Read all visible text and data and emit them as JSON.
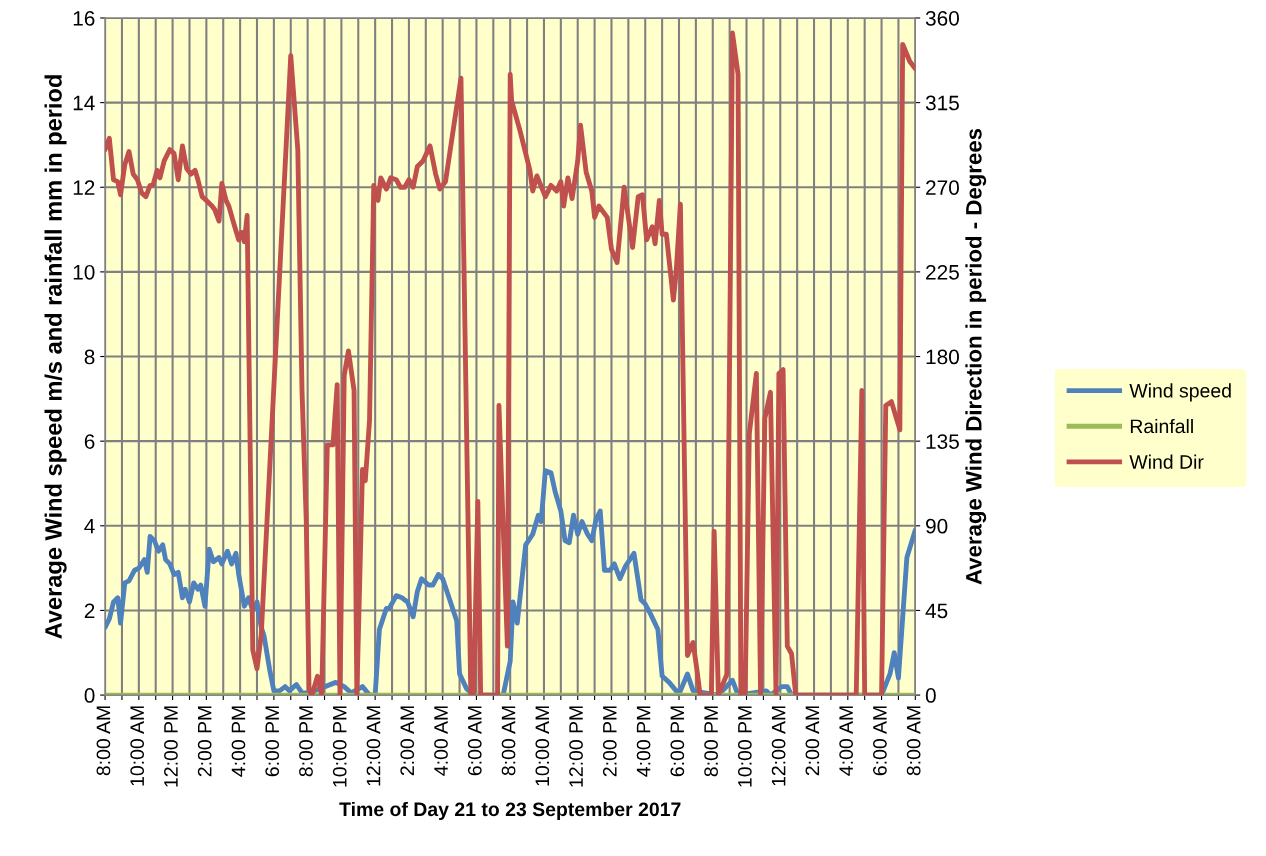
{
  "chart_data": {
    "type": "line",
    "xlabel": "Time of Day 21 to 23 September 2017",
    "ylabel": "Average Wind speed m/s and rainfall mm in period",
    "y2label": "Average Wind Direction in period - Degrees",
    "xlim": [
      "2017-09-21T08:00",
      "2017-09-23T08:00"
    ],
    "xticks": [
      {
        "value": "2017-09-21T08:00",
        "label": "8:00 AM"
      },
      {
        "value": "2017-09-21T09:00",
        "label": null
      },
      {
        "value": "2017-09-21T10:00",
        "label": "10:00 AM"
      },
      {
        "value": "2017-09-21T11:00",
        "label": null
      },
      {
        "value": "2017-09-21T12:00",
        "label": "12:00 PM"
      },
      {
        "value": "2017-09-21T13:00",
        "label": null
      },
      {
        "value": "2017-09-21T14:00",
        "label": "2:00 PM"
      },
      {
        "value": "2017-09-21T15:00",
        "label": null
      },
      {
        "value": "2017-09-21T16:00",
        "label": "4:00 PM"
      },
      {
        "value": "2017-09-21T17:00",
        "label": null
      },
      {
        "value": "2017-09-21T18:00",
        "label": "6:00 PM"
      },
      {
        "value": "2017-09-21T19:00",
        "label": null
      },
      {
        "value": "2017-09-21T20:00",
        "label": "8:00 PM"
      },
      {
        "value": "2017-09-21T21:00",
        "label": null
      },
      {
        "value": "2017-09-21T22:00",
        "label": "10:00 PM"
      },
      {
        "value": "2017-09-21T23:00",
        "label": null
      },
      {
        "value": "2017-09-22T00:00",
        "label": "12:00 AM"
      },
      {
        "value": "2017-09-22T01:00",
        "label": null
      },
      {
        "value": "2017-09-22T02:00",
        "label": "2:00 AM"
      },
      {
        "value": "2017-09-22T03:00",
        "label": null
      },
      {
        "value": "2017-09-22T04:00",
        "label": "4:00 AM"
      },
      {
        "value": "2017-09-22T05:00",
        "label": null
      },
      {
        "value": "2017-09-22T06:00",
        "label": "6:00 AM"
      },
      {
        "value": "2017-09-22T07:00",
        "label": null
      },
      {
        "value": "2017-09-22T08:00",
        "label": "8:00 AM"
      },
      {
        "value": "2017-09-22T09:00",
        "label": null
      },
      {
        "value": "2017-09-22T10:00",
        "label": "10:00 AM"
      },
      {
        "value": "2017-09-22T11:00",
        "label": null
      },
      {
        "value": "2017-09-22T12:00",
        "label": "12:00 PM"
      },
      {
        "value": "2017-09-22T13:00",
        "label": null
      },
      {
        "value": "2017-09-22T14:00",
        "label": "2:00 PM"
      },
      {
        "value": "2017-09-22T15:00",
        "label": null
      },
      {
        "value": "2017-09-22T16:00",
        "label": "4:00 PM"
      },
      {
        "value": "2017-09-22T17:00",
        "label": null
      },
      {
        "value": "2017-09-22T18:00",
        "label": "6:00 PM"
      },
      {
        "value": "2017-09-22T19:00",
        "label": null
      },
      {
        "value": "2017-09-22T20:00",
        "label": "8:00 PM"
      },
      {
        "value": "2017-09-22T21:00",
        "label": null
      },
      {
        "value": "2017-09-22T22:00",
        "label": "10:00 PM"
      },
      {
        "value": "2017-09-22T23:00",
        "label": null
      },
      {
        "value": "2017-09-23T00:00",
        "label": "12:00 AM"
      },
      {
        "value": "2017-09-23T01:00",
        "label": null
      },
      {
        "value": "2017-09-23T02:00",
        "label": "2:00 AM"
      },
      {
        "value": "2017-09-23T03:00",
        "label": null
      },
      {
        "value": "2017-09-23T04:00",
        "label": "4:00 AM"
      },
      {
        "value": "2017-09-23T05:00",
        "label": null
      },
      {
        "value": "2017-09-23T06:00",
        "label": "6:00 AM"
      },
      {
        "value": "2017-09-23T07:00",
        "label": null
      },
      {
        "value": "2017-09-23T08:00",
        "label": "8:00 AM"
      }
    ],
    "ylim": [
      0,
      16
    ],
    "yticks": [
      0,
      2,
      4,
      6,
      8,
      10,
      12,
      14,
      16
    ],
    "y2lim": [
      0,
      360
    ],
    "y2ticks": [
      0,
      45,
      90,
      135,
      180,
      225,
      270,
      315,
      360
    ],
    "grid": true,
    "legend": "right",
    "marker": "none",
    "line_style": "solid",
    "series": [
      {
        "name": "Wind speed",
        "color": "#4f81bd",
        "x": [
          "2017-09-21T08:00",
          "2017-09-21T08:15",
          "2017-09-21T08:30",
          "2017-09-21T08:45",
          "2017-09-21T08:55",
          "2017-09-21T09:10",
          "2017-09-21T09:25",
          "2017-09-21T09:45",
          "2017-09-21T10:00",
          "2017-09-21T10:20",
          "2017-09-21T10:30",
          "2017-09-21T10:40",
          "2017-09-21T10:55",
          "2017-09-21T11:10",
          "2017-09-21T11:25",
          "2017-09-21T11:35",
          "2017-09-21T11:50",
          "2017-09-21T12:05",
          "2017-09-21T12:20",
          "2017-09-21T12:35",
          "2017-09-21T12:45",
          "2017-09-21T13:00",
          "2017-09-21T13:15",
          "2017-09-21T13:30",
          "2017-09-21T13:40",
          "2017-09-21T13:55",
          "2017-09-21T14:10",
          "2017-09-21T14:25",
          "2017-09-21T14:45",
          "2017-09-21T14:55",
          "2017-09-21T15:15",
          "2017-09-21T15:30",
          "2017-09-21T15:45",
          "2017-09-21T15:55",
          "2017-09-21T16:15",
          "2017-09-21T16:30",
          "2017-09-21T16:45",
          "2017-09-21T17:00",
          "2017-09-21T17:15",
          "2017-09-21T17:25",
          "2017-09-21T17:45",
          "2017-09-21T18:00",
          "2017-09-21T18:20",
          "2017-09-21T18:40",
          "2017-09-21T18:55",
          "2017-09-21T19:20",
          "2017-09-21T19:40",
          "2017-09-21T20:05",
          "2017-09-21T21:40",
          "2017-09-21T22:10",
          "2017-09-21T22:35",
          "2017-09-21T23:15",
          "2017-09-21T23:40",
          "2017-09-22T00:00",
          "2017-09-22T00:15",
          "2017-09-22T00:40",
          "2017-09-22T00:50",
          "2017-09-22T01:15",
          "2017-09-22T01:35",
          "2017-09-22T01:55",
          "2017-09-22T02:15",
          "2017-09-22T02:30",
          "2017-09-22T02:45",
          "2017-09-22T03:10",
          "2017-09-22T03:25",
          "2017-09-22T03:45",
          "2017-09-22T04:00",
          "2017-09-22T04:25",
          "2017-09-22T04:50",
          "2017-09-22T05:00",
          "2017-09-22T05:25",
          "2017-09-22T05:50",
          "2017-09-22T07:35",
          "2017-09-22T08:00",
          "2017-09-22T08:10",
          "2017-09-22T08:25",
          "2017-09-22T08:55",
          "2017-09-22T09:20",
          "2017-09-22T09:40",
          "2017-09-22T09:50",
          "2017-09-22T10:05",
          "2017-09-22T10:25",
          "2017-09-22T10:40",
          "2017-09-22T11:00",
          "2017-09-22T11:15",
          "2017-09-22T11:30",
          "2017-09-22T11:45",
          "2017-09-22T12:00",
          "2017-09-22T12:15",
          "2017-09-22T12:35",
          "2017-09-22T12:50",
          "2017-09-22T13:05",
          "2017-09-22T13:20",
          "2017-09-22T13:35",
          "2017-09-22T13:55",
          "2017-09-22T14:10",
          "2017-09-22T14:30",
          "2017-09-22T14:50",
          "2017-09-22T15:20",
          "2017-09-22T15:45",
          "2017-09-22T16:00",
          "2017-09-22T16:20",
          "2017-09-22T16:45",
          "2017-09-22T17:00",
          "2017-09-22T17:25",
          "2017-09-22T17:50",
          "2017-09-22T18:05",
          "2017-09-22T18:30",
          "2017-09-22T18:50",
          "2017-09-22T20:20",
          "2017-09-22T21:10",
          "2017-09-22T21:30",
          "2017-09-22T23:10",
          "2017-09-22T23:25",
          "2017-09-23T00:05",
          "2017-09-23T00:25",
          "2017-09-23T00:40",
          "2017-09-23T06:00",
          "2017-09-23T06:30",
          "2017-09-23T06:45",
          "2017-09-23T07:00",
          "2017-09-23T07:30",
          "2017-09-23T08:00"
        ],
        "values": [
          1.6,
          1.8,
          2.2,
          2.3,
          1.7,
          2.65,
          2.7,
          2.95,
          3.0,
          3.2,
          2.9,
          3.75,
          3.65,
          3.4,
          3.55,
          3.2,
          3.1,
          2.85,
          2.9,
          2.3,
          2.5,
          2.2,
          2.65,
          2.5,
          2.6,
          2.1,
          3.45,
          3.15,
          3.25,
          3.1,
          3.4,
          3.1,
          3.35,
          2.85,
          2.1,
          2.3,
          2.0,
          2.2,
          1.6,
          1.4,
          0.6,
          0.1,
          0.1,
          0.2,
          0.1,
          0.25,
          0.05,
          0.05,
          0.3,
          0.2,
          0.05,
          0.2,
          0.0,
          0.0,
          1.55,
          2.05,
          2.05,
          2.35,
          2.3,
          2.2,
          1.85,
          2.45,
          2.75,
          2.6,
          2.6,
          2.85,
          2.75,
          2.25,
          1.75,
          0.5,
          0.15,
          0.0,
          0.0,
          0.8,
          2.2,
          1.7,
          3.55,
          3.8,
          4.25,
          4.1,
          5.3,
          5.25,
          4.8,
          4.35,
          3.65,
          3.6,
          4.25,
          3.8,
          4.1,
          3.8,
          3.65,
          4.15,
          4.35,
          2.95,
          2.95,
          3.1,
          2.75,
          3.05,
          3.35,
          2.25,
          2.15,
          1.9,
          1.55,
          0.45,
          0.3,
          0.1,
          0.1,
          0.5,
          0.1,
          0.0,
          0.35,
          0.0,
          0.1,
          0.0,
          0.2,
          0.2,
          0.0,
          0.0,
          0.5,
          1.0,
          0.4,
          3.25,
          3.9
        ]
      },
      {
        "name": "Rainfall",
        "color": "#9bbb59",
        "x": [
          "2017-09-21T08:00",
          "2017-09-23T08:00"
        ],
        "values": [
          0,
          0
        ]
      },
      {
        "name": "Wind Dir",
        "color": "#c0504d",
        "axis": "y2",
        "x": [
          "2017-09-21T08:00",
          "2017-09-21T08:15",
          "2017-09-21T08:30",
          "2017-09-21T08:45",
          "2017-09-21T08:55",
          "2017-09-21T09:10",
          "2017-09-21T09:25",
          "2017-09-21T09:40",
          "2017-09-21T09:55",
          "2017-09-21T10:10",
          "2017-09-21T10:25",
          "2017-09-21T10:40",
          "2017-09-21T10:50",
          "2017-09-21T11:05",
          "2017-09-21T11:15",
          "2017-09-21T11:30",
          "2017-09-21T11:50",
          "2017-09-21T12:05",
          "2017-09-21T12:20",
          "2017-09-21T12:35",
          "2017-09-21T12:50",
          "2017-09-21T13:05",
          "2017-09-21T13:20",
          "2017-09-21T13:30",
          "2017-09-21T13:45",
          "2017-09-21T14:00",
          "2017-09-21T14:20",
          "2017-09-21T14:30",
          "2017-09-21T14:45",
          "2017-09-21T14:55",
          "2017-09-21T15:10",
          "2017-09-21T15:20",
          "2017-09-21T15:35",
          "2017-09-21T15:45",
          "2017-09-21T15:55",
          "2017-09-21T16:05",
          "2017-09-21T16:15",
          "2017-09-21T16:25",
          "2017-09-21T16:45",
          "2017-09-21T17:00",
          "2017-09-21T17:15",
          "2017-09-21T19:00",
          "2017-09-21T19:25",
          "2017-09-21T19:40",
          "2017-09-21T19:55",
          "2017-09-21T20:05",
          "2017-09-21T20:15",
          "2017-09-21T20:35",
          "2017-09-21T20:50",
          "2017-09-21T21:10",
          "2017-09-21T21:30",
          "2017-09-21T21:45",
          "2017-09-21T21:55",
          "2017-09-21T22:10",
          "2017-09-21T22:25",
          "2017-09-21T22:45",
          "2017-09-21T22:55",
          "2017-09-21T23:15",
          "2017-09-21T23:25",
          "2017-09-21T23:40",
          "2017-09-21T23:55",
          "2017-09-22T00:10",
          "2017-09-22T00:20",
          "2017-09-22T00:40",
          "2017-09-22T00:55",
          "2017-09-22T01:15",
          "2017-09-22T01:30",
          "2017-09-22T01:45",
          "2017-09-22T02:00",
          "2017-09-22T02:15",
          "2017-09-22T02:30",
          "2017-09-22T02:50",
          "2017-09-22T03:15",
          "2017-09-22T03:35",
          "2017-09-22T03:50",
          "2017-09-22T04:10",
          "2017-09-22T05:05",
          "2017-09-22T05:40",
          "2017-09-22T05:50",
          "2017-09-22T06:05",
          "2017-09-22T06:15",
          "2017-09-22T07:15",
          "2017-09-22T07:20",
          "2017-09-22T07:50",
          "2017-09-22T08:00",
          "2017-09-22T08:05",
          "2017-09-22T08:35",
          "2017-09-22T09:10",
          "2017-09-22T09:20",
          "2017-09-22T09:35",
          "2017-09-22T10:05",
          "2017-09-22T10:25",
          "2017-09-22T10:45",
          "2017-09-22T11:00",
          "2017-09-22T11:10",
          "2017-09-22T11:25",
          "2017-09-22T11:40",
          "2017-09-22T12:00",
          "2017-09-22T12:10",
          "2017-09-22T12:30",
          "2017-09-22T12:50",
          "2017-09-22T13:00",
          "2017-09-22T13:15",
          "2017-09-22T13:45",
          "2017-09-22T14:00",
          "2017-09-22T14:20",
          "2017-09-22T14:45",
          "2017-09-22T15:15",
          "2017-09-22T15:35",
          "2017-09-22T15:50",
          "2017-09-22T16:05",
          "2017-09-22T16:25",
          "2017-09-22T16:35",
          "2017-09-22T16:50",
          "2017-09-22T17:00",
          "2017-09-22T17:15",
          "2017-09-22T17:40",
          "2017-09-22T17:50",
          "2017-09-22T18:05",
          "2017-09-22T18:30",
          "2017-09-22T18:50",
          "2017-09-22T19:05",
          "2017-09-22T19:15",
          "2017-09-22T19:55",
          "2017-09-22T20:05",
          "2017-09-22T20:20",
          "2017-09-22T20:50",
          "2017-09-22T21:10",
          "2017-09-22T21:30",
          "2017-09-22T21:40",
          "2017-09-22T21:55",
          "2017-09-22T22:10",
          "2017-09-22T22:35",
          "2017-09-22T22:50",
          "2017-09-22T23:05",
          "2017-09-22T23:25",
          "2017-09-22T23:45",
          "2017-09-22T23:55",
          "2017-09-23T00:10",
          "2017-09-23T00:25",
          "2017-09-23T00:40",
          "2017-09-23T00:55",
          "2017-09-23T04:30",
          "2017-09-23T04:50",
          "2017-09-23T05:00",
          "2017-09-23T06:00",
          "2017-09-23T06:15",
          "2017-09-23T06:35",
          "2017-09-23T07:05",
          "2017-09-23T07:15",
          "2017-09-23T07:40",
          "2017-09-23T08:00"
        ],
        "values": [
          290,
          296,
          274,
          273,
          266,
          282,
          289,
          277,
          274,
          267,
          265,
          271,
          271,
          279,
          275,
          284,
          290,
          288,
          274,
          292,
          280,
          277,
          279,
          274,
          265,
          263,
          260,
          258,
          252,
          272,
          263,
          260,
          252,
          247,
          242,
          246,
          241,
          255,
          24,
          14,
          32,
          340,
          290,
          162,
          93,
          3,
          0,
          10,
          0,
          133,
          133,
          165,
          0,
          170,
          183,
          162,
          0,
          120,
          114,
          146,
          271,
          263,
          275,
          269,
          275,
          274,
          270,
          270,
          274,
          270,
          281,
          284,
          292,
          277,
          269,
          273,
          328,
          0,
          0,
          103,
          0,
          0,
          154,
          26,
          330,
          316,
          300,
          279,
          268,
          276,
          265,
          271,
          268,
          273,
          260,
          275,
          264,
          284,
          303,
          278,
          268,
          254,
          260,
          254,
          237,
          230,
          270,
          238,
          265,
          266,
          242,
          249,
          240,
          263,
          245,
          245,
          210,
          225,
          261,
          21,
          28,
          12,
          0,
          0,
          87,
          0,
          11,
          352,
          330,
          0,
          0,
          139,
          171,
          0,
          147,
          161,
          0,
          171,
          173,
          26,
          22,
          0,
          0,
          162,
          0,
          0,
          154,
          156,
          141,
          346,
          337,
          333
        ]
      }
    ]
  }
}
